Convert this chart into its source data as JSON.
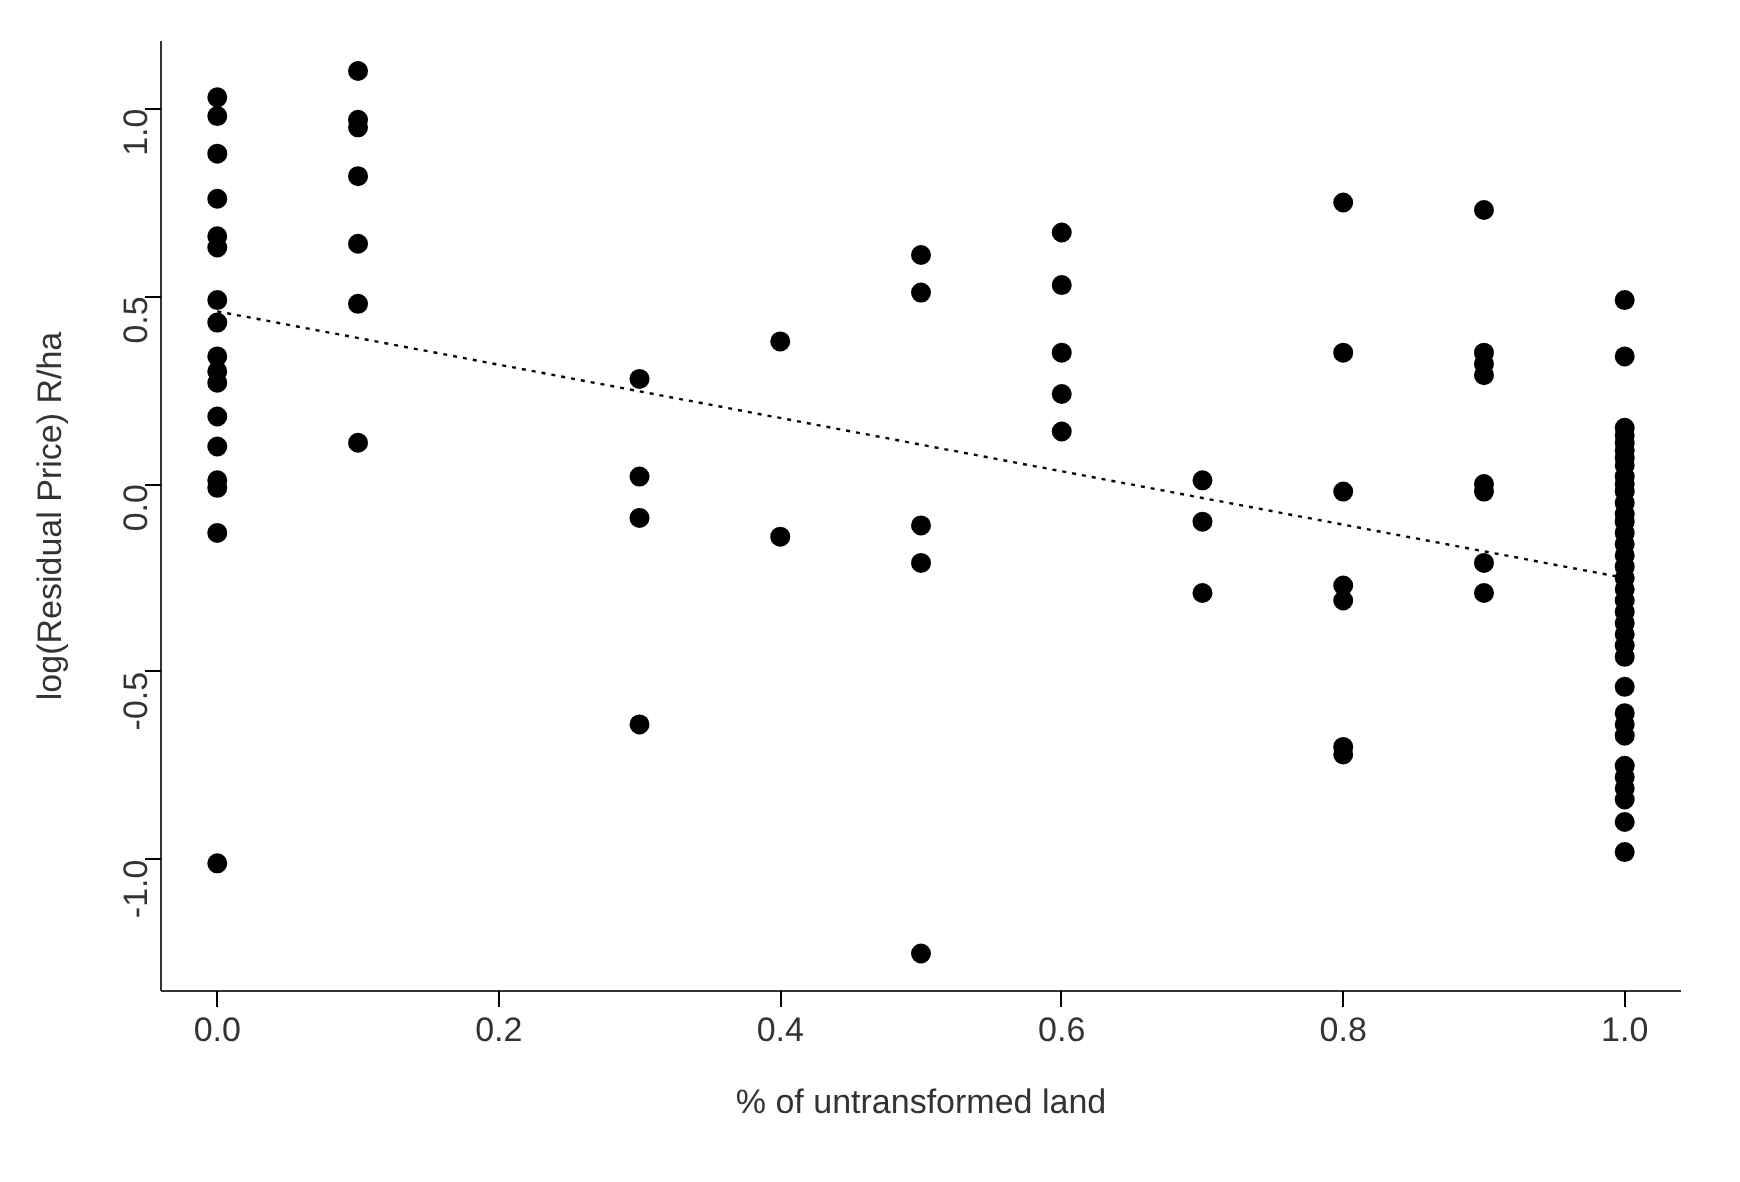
{
  "chart_data": {
    "type": "scatter",
    "xlabel": "% of untransformed land",
    "ylabel": "log(Residual Price) R/ha",
    "xlim": [
      -0.04,
      1.04
    ],
    "ylim": [
      -1.35,
      1.18
    ],
    "xticks": [
      {
        "value": 0,
        "label": "0.0"
      },
      0.2,
      0.4,
      0.6,
      0.8,
      {
        "value": 1,
        "label": "1.0"
      }
    ],
    "yticks": [
      {
        "value": -1,
        "label": "-1.0"
      },
      -0.5,
      {
        "value": 0,
        "label": "0.0"
      },
      0.5,
      {
        "value": 1,
        "label": "1.0"
      }
    ],
    "grid": false,
    "marker": "circle",
    "series": [
      {
        "color": "#000000",
        "x": [
          0,
          0,
          0,
          0,
          0,
          0,
          0,
          0,
          0,
          0,
          0,
          0,
          0,
          0,
          0,
          0,
          0,
          0.1,
          0.1,
          0.1,
          0.1,
          0.1,
          0.1,
          0.1,
          0.3,
          0.3,
          0.3,
          0.3,
          0.4,
          0.4,
          0.5,
          0.5,
          0.5,
          0.5,
          0.5,
          0.6,
          0.6,
          0.6,
          0.6,
          0.6,
          0.7,
          0.7,
          0.7,
          0.8,
          0.8,
          0.8,
          0.8,
          0.8,
          0.8,
          0.8,
          0.9,
          0.9,
          0.9,
          0.9,
          0.9,
          0.9,
          0.9,
          0.9,
          1,
          1,
          1,
          1,
          1,
          1,
          1,
          1,
          1,
          1,
          1,
          1,
          1,
          1,
          1,
          1,
          1,
          1,
          1,
          1,
          1,
          1,
          1,
          1,
          1,
          1,
          1,
          1,
          1,
          1,
          1,
          1,
          1,
          1,
          1,
          1
        ],
        "values": [
          1.03,
          0.98,
          0.88,
          0.76,
          0.66,
          0.63,
          0.49,
          0.43,
          0.34,
          0.3,
          0.27,
          0.18,
          0.1,
          0.01,
          -0.01,
          -0.13,
          -1.01,
          1.1,
          0.97,
          0.95,
          0.82,
          0.64,
          0.48,
          0.11,
          0.28,
          0.02,
          -0.09,
          -0.64,
          0.38,
          -0.14,
          0.61,
          0.51,
          -0.11,
          -0.21,
          -1.25,
          0.67,
          0.53,
          0.35,
          0.24,
          0.14,
          0.01,
          -0.1,
          -0.29,
          0.75,
          0.35,
          -0.02,
          -0.27,
          -0.31,
          -0.7,
          -0.72,
          0.73,
          0.35,
          0.32,
          0.29,
          0.0,
          -0.02,
          -0.21,
          -0.29,
          0.49,
          0.34,
          0.15,
          0.13,
          0.11,
          0.09,
          0.07,
          0.05,
          0.02,
          0.0,
          -0.02,
          -0.05,
          -0.08,
          -0.1,
          -0.13,
          -0.16,
          -0.19,
          -0.22,
          -0.25,
          -0.28,
          -0.31,
          -0.34,
          -0.37,
          -0.4,
          -0.43,
          -0.46,
          -0.54,
          -0.61,
          -0.64,
          -0.67,
          -0.75,
          -0.78,
          -0.81,
          -0.84,
          -0.9,
          -0.98
        ]
      },
      {
        "type": "line",
        "color": "#000000",
        "line_style": "dotted",
        "marker": "none",
        "x": [
          0,
          1
        ],
        "values": [
          0.46,
          -0.25
        ]
      }
    ]
  }
}
